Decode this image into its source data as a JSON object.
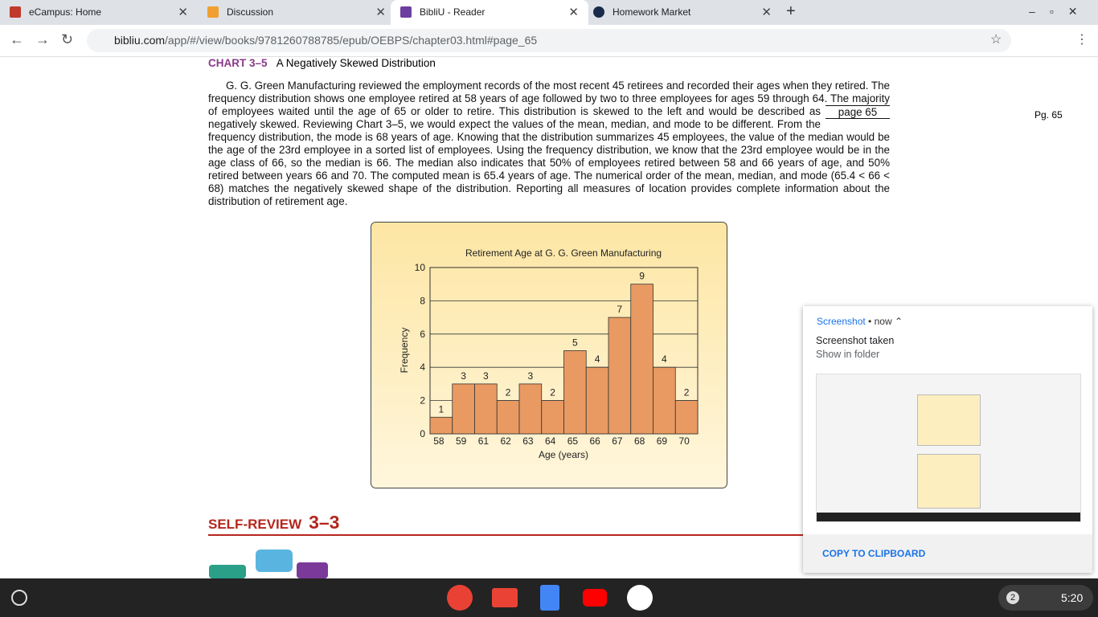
{
  "browser": {
    "tabs": [
      {
        "title": "eCampus: Home"
      },
      {
        "title": "Discussion"
      },
      {
        "title": "BibliU - Reader"
      },
      {
        "title": "Homework Market"
      }
    ],
    "url_host": "bibliu.com",
    "url_path": "/app/#/view/books/9781260788785/epub/OEBPS/chapter03.html#page_65"
  },
  "page": {
    "chart_heading": "CHART 3–5",
    "chart_caption": "A Negatively Skewed Distribution",
    "paragraph": "G. G. Green Manufacturing reviewed the employment records of the most recent 45 retirees and recorded their ages when they retired. The frequency distribution shows one employee retired at 58 years of age followed by two to three employees for ages 59 through 64. The majority of employees waited until the age of 65 or older to retire. This distribution is skewed to the left and would be described as negatively skewed. Reviewing Chart 3–5, we would expect the values of the mean, median, and mode to be different. From the frequency distribution, the mode is 68 years of age. Knowing that the distribution summarizes 45 employees, the value of the median would be the age of the 23rd employee in a sorted list of employees. Using the frequency distribution, we know that the 23rd employee would be in the age class of 66, so the median is 66. The median also indicates that 50% of employees retired between 58 and 66 years of age, and 50% retired between years 66 and 70. The computed mean is 65.4 years of age. The numerical order of the mean, median, and mode (65.4 < 66 < 68) matches the negatively skewed shape of the distribution. Reporting all measures of location provides complete information about the distribution of retirement age.",
    "page_marker": "page 65",
    "page_number": "Pg. 65",
    "self_review_label": "SELF-REVIEW",
    "self_review_number": "3–3"
  },
  "chart_data": {
    "type": "bar",
    "title": "Retirement Age at G. G. Green Manufacturing",
    "x_label": "Age (years)",
    "y_label": "Frequency",
    "categories": [
      "58",
      "59",
      "61",
      "62",
      "63",
      "64",
      "65",
      "66",
      "67",
      "68",
      "69",
      "70"
    ],
    "values": [
      1,
      3,
      3,
      2,
      3,
      2,
      5,
      4,
      7,
      9,
      4,
      2
    ],
    "color": "#e99a62",
    "ylim": [
      0,
      10
    ],
    "yticks": [
      0,
      2,
      4,
      6,
      8,
      10
    ],
    "grid": true
  },
  "notification": {
    "app": "Screenshot",
    "time": "now",
    "title": "Screenshot taken",
    "subtitle": "Show in folder",
    "action": "COPY TO CLIPBOARD"
  },
  "taskbar": {
    "badge": "2",
    "time": "5:20"
  }
}
